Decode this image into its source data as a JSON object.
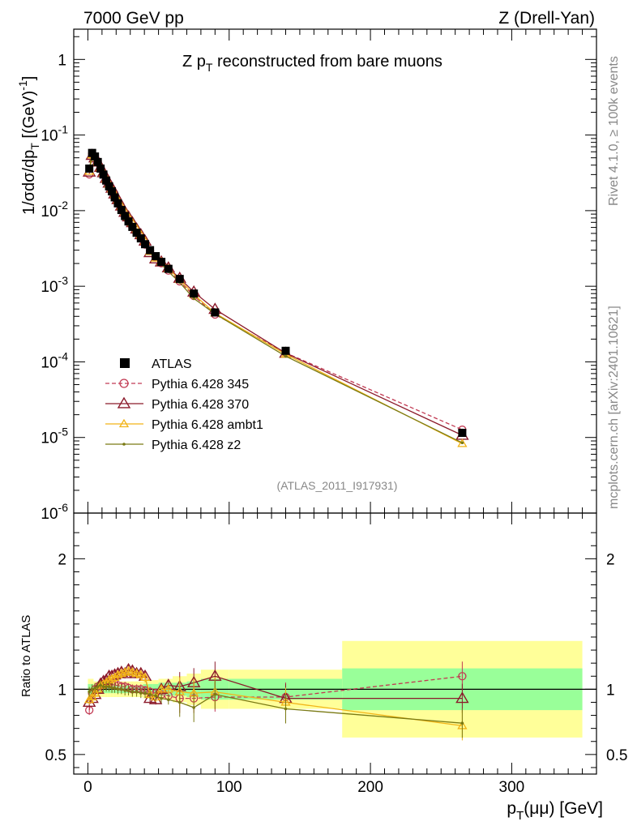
{
  "header": {
    "left": "7000 GeV pp",
    "right": "Z (Drell-Yan)"
  },
  "side": {
    "rivet": "Rivet 4.1.0, ≥ 100k events",
    "mcplots": "mcplots.cern.ch [arXiv:2401.10621]"
  },
  "chart_data": {
    "type": "scatter",
    "title_parts": {
      "main": "Z p",
      "sub": "T",
      "rest": " reconstructed from bare muons"
    },
    "reference": "(ATLAS_2011_I917931)",
    "ylabel_upper": {
      "p1": "1/σdσ/dp",
      "sub1": "T",
      "p2": " [(GeV)",
      "sup": "-1",
      "p3": "]"
    },
    "ylabel_lower": "Ratio to ATLAS",
    "xlabel": {
      "p1": "p",
      "sub": "T",
      "p2": "(μμ) [GeV]"
    },
    "xlim": [
      -10,
      360
    ],
    "ylim_upper_log10": [
      -6,
      0.4
    ],
    "ylim_ratio": [
      0.35,
      2.35
    ],
    "x_ticks": [
      0,
      100,
      200,
      300
    ],
    "x_tick_labels": [
      "0",
      "100",
      "200",
      "300"
    ],
    "y_ticks_upper": [
      {
        "mant": "1",
        "exp": ""
      },
      {
        "mant": "10",
        "exp": "-1"
      },
      {
        "mant": "10",
        "exp": "-2"
      },
      {
        "mant": "10",
        "exp": "-3"
      },
      {
        "mant": "10",
        "exp": "-4"
      },
      {
        "mant": "10",
        "exp": "-5"
      },
      {
        "mant": "10",
        "exp": "-6"
      }
    ],
    "y_ticks_ratio": [
      0.5,
      1,
      2
    ],
    "y_tick_labels_ratio": [
      "0.5",
      "1",
      "2"
    ],
    "bins": [
      [
        0,
        2
      ],
      [
        2,
        4
      ],
      [
        4,
        6
      ],
      [
        6,
        8
      ],
      [
        8,
        10
      ],
      [
        10,
        12
      ],
      [
        12,
        14
      ],
      [
        14,
        16
      ],
      [
        16,
        18
      ],
      [
        18,
        20
      ],
      [
        20,
        22.5
      ],
      [
        22.5,
        25
      ],
      [
        25,
        27.5
      ],
      [
        27.5,
        30
      ],
      [
        30,
        33
      ],
      [
        33,
        36
      ],
      [
        36,
        39
      ],
      [
        39,
        42
      ],
      [
        42,
        46
      ],
      [
        46,
        50
      ],
      [
        50,
        54
      ],
      [
        54,
        60
      ],
      [
        60,
        70
      ],
      [
        70,
        80
      ],
      [
        80,
        100
      ],
      [
        100,
        180
      ],
      [
        180,
        350
      ]
    ],
    "x": [
      1,
      3,
      5,
      7,
      9,
      11,
      13,
      15,
      17,
      19,
      21.25,
      23.75,
      26.25,
      28.75,
      31.5,
      34.5,
      37.5,
      40.5,
      44,
      48,
      52,
      57,
      65,
      75,
      90,
      140,
      265
    ],
    "atlas_values": [
      0.036,
      0.058,
      0.052,
      0.044,
      0.036,
      0.03,
      0.025,
      0.021,
      0.018,
      0.015,
      0.0125,
      0.0102,
      0.0085,
      0.0072,
      0.0061,
      0.0051,
      0.0043,
      0.0036,
      0.003,
      0.0025,
      0.0021,
      0.0017,
      0.00125,
      0.0008,
      0.00045,
      0.00014,
      1.15e-05
    ],
    "band_green": [
      0.04,
      0.04,
      0.03,
      0.03,
      0.03,
      0.03,
      0.03,
      0.03,
      0.03,
      0.03,
      0.03,
      0.03,
      0.03,
      0.03,
      0.03,
      0.03,
      0.03,
      0.04,
      0.04,
      0.04,
      0.05,
      0.05,
      0.05,
      0.06,
      0.08,
      0.08,
      0.16
    ],
    "band_yellow": [
      0.08,
      0.08,
      0.06,
      0.06,
      0.06,
      0.06,
      0.06,
      0.06,
      0.06,
      0.06,
      0.06,
      0.06,
      0.06,
      0.06,
      0.06,
      0.06,
      0.06,
      0.07,
      0.07,
      0.07,
      0.08,
      0.08,
      0.1,
      0.12,
      0.15,
      0.15,
      0.37
    ],
    "legend": {
      "position": "middle-left",
      "atlas_label": "ATLAS"
    },
    "series": [
      {
        "name": "Pythia 6.428 345",
        "color": "#c23a53",
        "marker": "circle",
        "dash": true,
        "ratio": [
          0.84,
          0.97,
          1.0,
          1.02,
          1.03,
          1.04,
          1.05,
          1.04,
          1.04,
          1.03,
          1.03,
          1.02,
          1.02,
          1.01,
          1.0,
          1.0,
          1.0,
          0.99,
          0.98,
          0.97,
          0.96,
          0.95,
          0.93,
          0.93,
          0.94,
          0.94,
          1.1
        ]
      },
      {
        "name": "Pythia 6.428 370",
        "color": "#8b1a2b",
        "marker": "triangle",
        "dash": false,
        "ratio": [
          0.9,
          0.93,
          0.96,
          1.0,
          1.04,
          1.06,
          1.07,
          1.1,
          1.1,
          1.11,
          1.12,
          1.13,
          1.12,
          1.15,
          1.14,
          1.12,
          1.12,
          1.1,
          0.93,
          0.92,
          1.0,
          1.03,
          1.02,
          1.05,
          1.1,
          0.93,
          0.93
        ]
      },
      {
        "name": "Pythia 6.428 ambt1",
        "color": "#f2b418",
        "marker": "triangle-small",
        "dash": false,
        "ratio": [
          0.92,
          0.94,
          0.97,
          1.0,
          1.03,
          1.04,
          1.05,
          1.07,
          1.08,
          1.09,
          1.11,
          1.12,
          1.13,
          1.14,
          1.13,
          1.12,
          1.11,
          1.09,
          0.96,
          0.94,
          1.0,
          1.0,
          0.98,
          0.97,
          0.98,
          0.9,
          0.72
        ]
      },
      {
        "name": "Pythia 6.428 z2",
        "color": "#7a7a14",
        "marker": "dot",
        "dash": false,
        "ratio": [
          0.98,
          1.0,
          1.01,
          1.02,
          1.03,
          1.02,
          1.02,
          1.02,
          1.01,
          1.01,
          1.0,
          1.0,
          0.99,
          0.99,
          0.98,
          0.98,
          0.97,
          0.97,
          0.96,
          0.95,
          0.93,
          0.92,
          0.9,
          0.86,
          0.96,
          0.85,
          0.74
        ]
      }
    ]
  }
}
